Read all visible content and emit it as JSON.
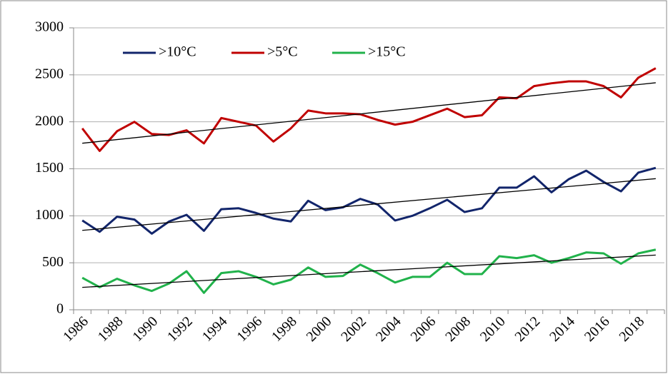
{
  "chart_data": {
    "type": "line",
    "categories": [
      "1986",
      null,
      "1988",
      null,
      "1990",
      null,
      "1992",
      null,
      "1994",
      null,
      "1996",
      null,
      "1998",
      null,
      "2000",
      null,
      "2002",
      null,
      "2004",
      null,
      "2006",
      null,
      "2008",
      null,
      "2010",
      null,
      "2012",
      null,
      "2014",
      null,
      "2016",
      null,
      "2018",
      null
    ],
    "series": [
      {
        "name": ">10°C",
        "color": "#12256b",
        "values": [
          950,
          830,
          990,
          960,
          810,
          940,
          1010,
          840,
          1070,
          1080,
          1030,
          970,
          940,
          1160,
          1060,
          1090,
          1180,
          1120,
          950,
          1000,
          1080,
          1170,
          1040,
          1080,
          1300,
          1300,
          1420,
          1250,
          1390,
          1480,
          1360,
          1260,
          1460,
          1510
        ]
      },
      {
        "name": ">5°C",
        "color": "#c00000",
        "values": [
          1930,
          1690,
          1900,
          2000,
          1870,
          1860,
          1910,
          1770,
          2040,
          2000,
          1960,
          1790,
          1930,
          2120,
          2090,
          2090,
          2080,
          2020,
          1970,
          2000,
          2070,
          2140,
          2050,
          2070,
          2260,
          2250,
          2380,
          2410,
          2430,
          2430,
          2380,
          2260,
          2470,
          2570
        ]
      },
      {
        "name": ">15°C",
        "color": "#21b24b",
        "values": [
          340,
          240,
          330,
          260,
          200,
          280,
          410,
          180,
          390,
          410,
          350,
          270,
          320,
          450,
          350,
          360,
          480,
          390,
          290,
          350,
          350,
          500,
          380,
          380,
          570,
          550,
          580,
          500,
          550,
          610,
          600,
          490,
          600,
          640
        ]
      }
    ],
    "trendline": true,
    "trendline_color": "#000000",
    "ylim": [
      0,
      3000
    ],
    "yticks": [
      0,
      500,
      1000,
      1500,
      2000,
      2500,
      3000
    ],
    "grid": true,
    "legend": "top-left"
  }
}
